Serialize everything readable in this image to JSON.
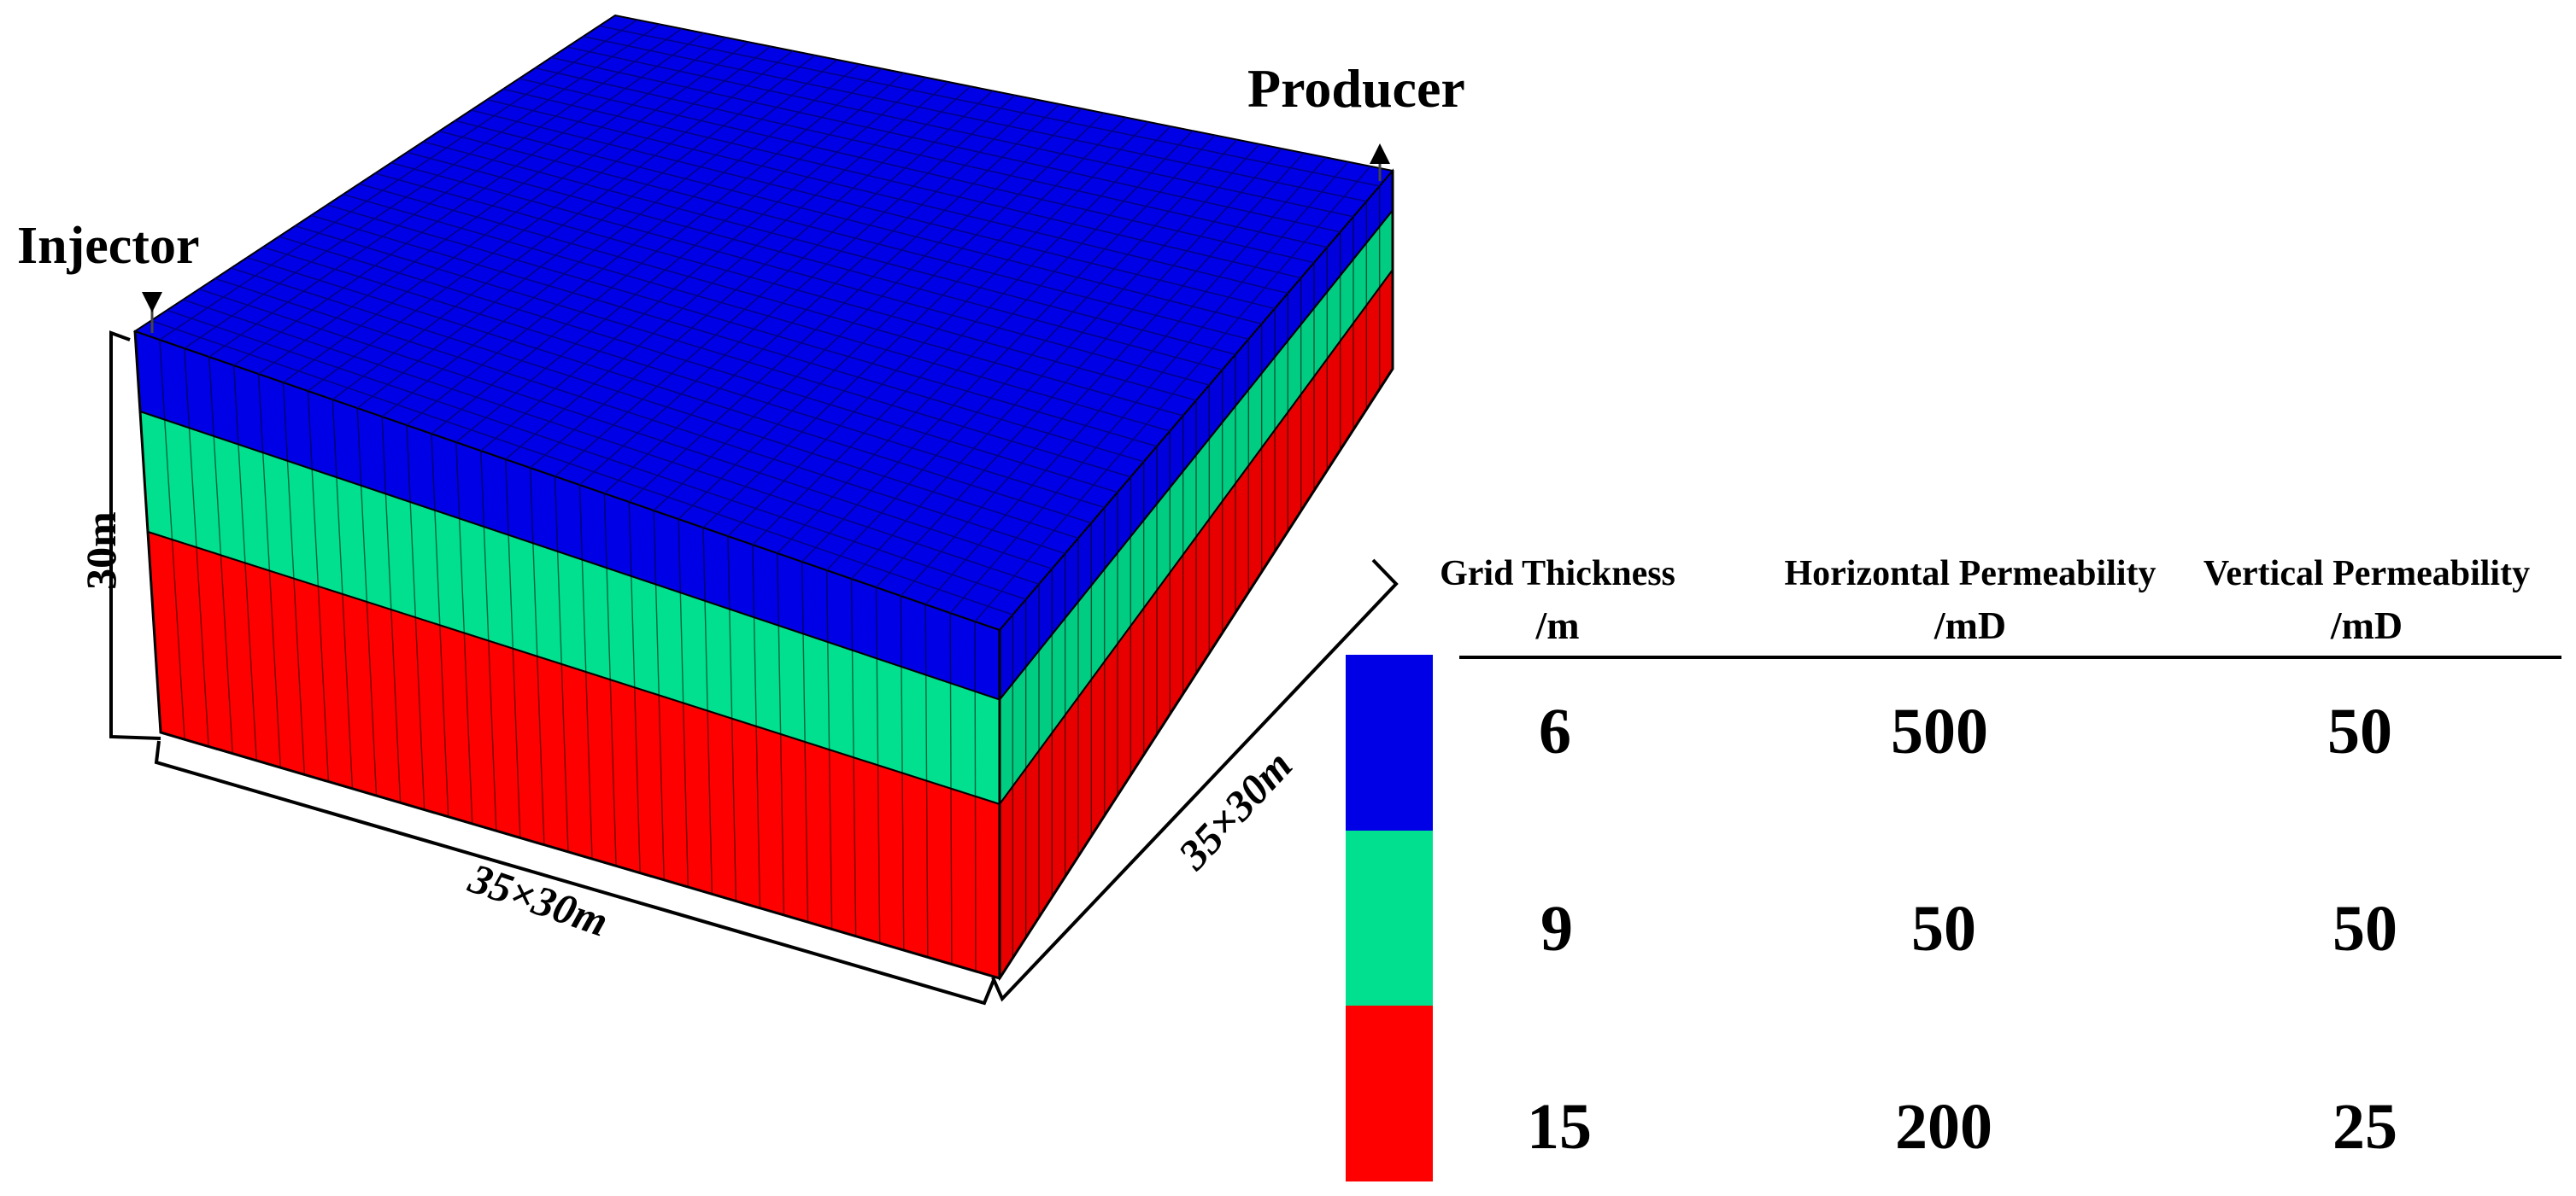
{
  "model": {
    "wells": {
      "injector": "Injector",
      "producer": "Producer"
    },
    "dimensions": {
      "height": "30m",
      "length": "35×30m",
      "width": "35×30m"
    },
    "grid": {
      "nx": 35,
      "ny": 30
    },
    "layers": [
      {
        "thickness": 6,
        "color": "#0000e6",
        "side_color": "#0000dc"
      },
      {
        "thickness": 9,
        "color": "#00e08e",
        "side_color": "#00cc82"
      },
      {
        "thickness": 15,
        "color": "#ff0000",
        "side_color": "#e80000"
      }
    ]
  },
  "table": {
    "headers": [
      {
        "line1": "Grid Thickness",
        "line2": "/m"
      },
      {
        "line1": "Horizontal Permeability",
        "line2": "/mD"
      },
      {
        "line1": "Vertical Permeability",
        "line2": "/mD"
      }
    ],
    "rows": [
      {
        "color": "#0000e6",
        "thickness": "6",
        "horizontal": "500",
        "vertical": "50"
      },
      {
        "color": "#00e08e",
        "thickness": "9",
        "horizontal": "50",
        "vertical": "50"
      },
      {
        "color": "#ff0000",
        "thickness": "15",
        "horizontal": "200",
        "vertical": "25"
      }
    ]
  }
}
